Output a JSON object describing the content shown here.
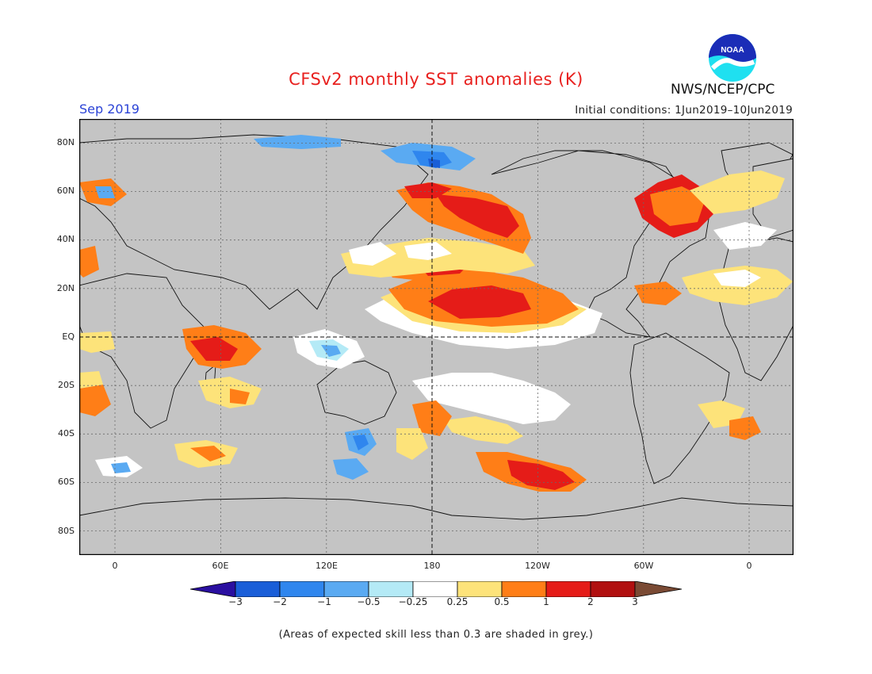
{
  "title": "CFSv2 monthly SST anomalies (K)",
  "valid_month": "Sep 2019",
  "initial_conditions": "Initial conditions: 1Jun2019–10Jun2019",
  "agency": "NWS/NCEP/CPC",
  "logo_text": "NOAA",
  "footnote": "(Areas of expected skill less than 0.3 are shaded in grey.)",
  "lat_labels": [
    "80N",
    "60N",
    "40N",
    "20N",
    "EQ",
    "20S",
    "40S",
    "60S",
    "80S"
  ],
  "lon_labels": [
    "0",
    "60E",
    "120E",
    "180",
    "120W",
    "60W",
    "0"
  ],
  "colorbar": {
    "ticks": [
      "−3",
      "−2",
      "−1",
      "−0.5",
      "−0.25",
      "0.25",
      "0.5",
      "1",
      "2",
      "3"
    ],
    "colors": [
      "#2a0fa0",
      "#1a5ed8",
      "#2f86ee",
      "#5aaaf2",
      "#b4eaf6",
      "#ffffff",
      "#fde37a",
      "#ff7e17",
      "#e51c18",
      "#b11010",
      "#7a4a34"
    ]
  },
  "colors": {
    "skill_mask_grey": "#c4c4c4",
    "title_red": "#e8201e",
    "date_blue": "#2b43d6"
  }
}
